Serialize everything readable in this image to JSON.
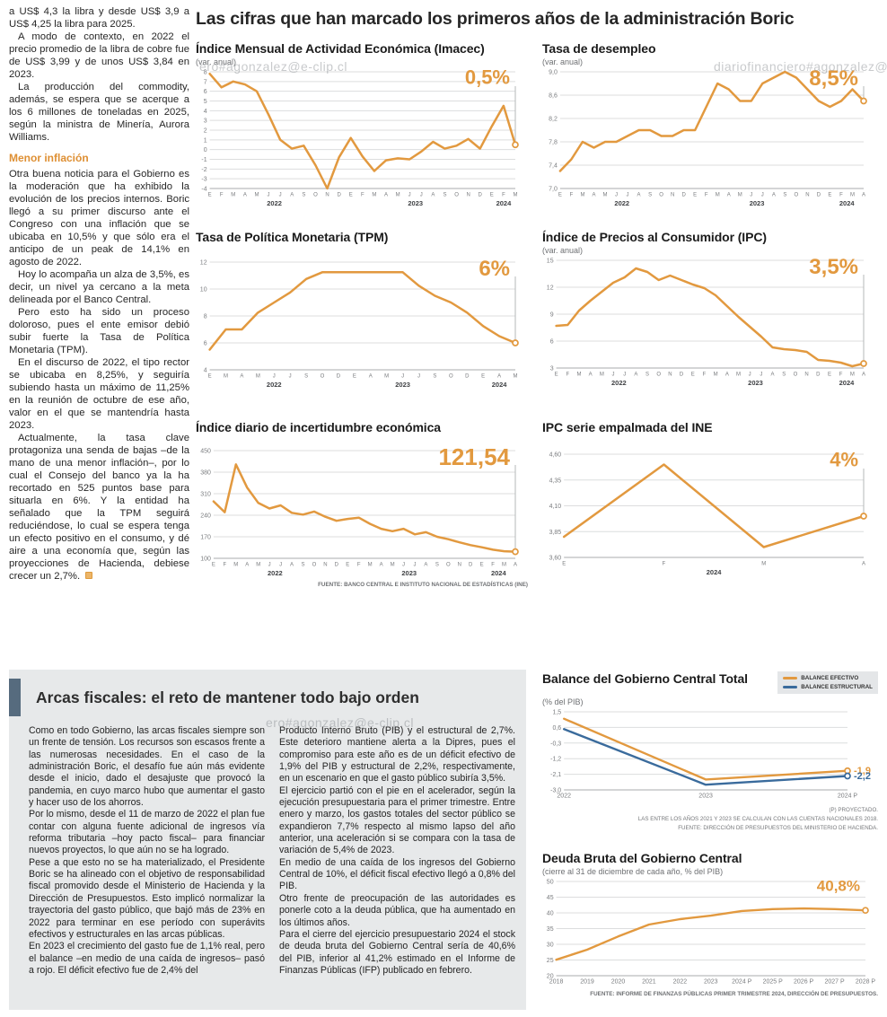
{
  "header": {
    "title": "Las cifras que han marcado los primeros años de la administración Boric"
  },
  "watermarks": {
    "w1": "ero#agonzalez@e-clip.cl",
    "w2": "diariofinanciero#agonzalez@e-clip.cl",
    "w3": "ero#agonzalez@e-clip.cl"
  },
  "article": {
    "intro_paragraphs": [
      "a US$ 4,3 la libra y desde US$ 3,9 a US$ 4,25 la libra para 2025.",
      "A modo de contexto, en 2022 el precio promedio de la libra de cobre fue de US$ 3,99 y de unos US$ 3,84 en 2023.",
      "La producción del commodity, además, se espera que se acerque a los 6 millones de toneladas en 2025, según la ministra de Minería, Aurora Williams."
    ],
    "subhead": "Menor inflación",
    "body_paragraphs": [
      "Otra buena noticia para el Gobierno es la moderación que ha exhibido la evolución de los precios internos. Boric llegó a su primer discurso ante el Congreso con una inflación que se ubicaba en 10,5% y que sólo era el anticipo de un peak de 14,1% en agosto de 2022.",
      "Hoy lo acompaña un alza de 3,5%, es decir, un nivel ya cercano a la meta delineada por el Banco Central.",
      "Pero esto ha sido un proceso doloroso, pues el ente emisor debió subir fuerte la Tasa de Política Monetaria (TPM).",
      "En el discurso de 2022, el tipo rector se ubicaba en 8,25%, y seguiría subiendo hasta un máximo de 11,25% en la reunión de octubre de ese año, valor en el que se mantendría hasta 2023."
    ],
    "last_paragraph": "Actualmente, la tasa clave protagoniza una senda de bajas –de la mano de una menor inflación–, por lo cual el Consejo del banco ya la ha recortado en 525 puntos base para situarla en 6%. Y la entidad ha señalado que la TPM seguirá reduciéndose, lo cual se espera tenga un efecto positivo en el consumo, y dé aire a una economía que, según las proyecciones de Hacienda, debiese crecer un 2,7%."
  },
  "fiscal": {
    "title": "Arcas fiscales: el reto de mantener todo bajo orden",
    "col1": [
      "Como en todo Gobierno, las arcas fiscales siempre son un frente de tensión. Los recursos son escasos frente a las numerosas necesidades. En el caso de la administración Boric, el desafío fue aún más evidente desde el inicio, dado el desajuste que provocó la pandemia, en cuyo marco hubo que aumentar el gasto y hacer uso de los ahorros.",
      "Por lo mismo, desde el 11 de marzo de 2022 el plan fue contar con alguna fuente adicional de ingresos vía reforma tributaria –hoy pacto fiscal– para financiar nuevos proyectos, lo que aún no se ha logrado.",
      "Pese a que esto no se ha materializado, el Presidente Boric se ha alineado con el objetivo de responsabilidad fiscal promovido desde el Ministerio de Hacienda y la Dirección de Presupuestos. Esto implicó normalizar la trayectoria del gasto público, que bajó más de 23% en 2022 para terminar en ese período con superávits efectivos y estructurales en las arcas públicas.",
      "En 2023 el crecimiento del gasto fue de 1,1% real, pero el balance –en medio de una caída de ingresos– pasó a rojo. El déficit efectivo fue de 2,4% del"
    ],
    "col2": [
      "Producto Interno Bruto (PIB) y el estructural de 2,7%. Este deterioro mantiene alerta a la Dipres, pues el compromiso para este año es de un déficit efectivo de 1,9% del PIB y estructural de 2,2%, respectivamente, en un escenario en que el gasto público subiría 3,5%.",
      "El ejercicio partió con el pie en el acelerador, según la ejecución presupuestaria para el primer trimestre. Entre enero y marzo, los gastos totales del sector público se expandieron 7,7% respecto al mismo lapso del año anterior, una aceleración si se compara con la tasa de variación de 5,4% de 2023.",
      "En medio de una caída de los ingresos del Gobierno Central de 10%, el déficit fiscal efectivo llegó a 0,8% del PIB.",
      "Otro frente de preocupación de las autoridades es ponerle coto a la deuda pública, que ha aumentado en los últimos años.",
      "Para el cierre del ejercicio presupuestario 2024 el stock de deuda bruta del Gobierno Central sería de 40,6% del PIB, inferior al 41,2% estimado en el Informe de Finanzas Públicas (IFP) publicado en febrero."
    ]
  },
  "colors": {
    "accent_orange": "#E2993F",
    "line_blue": "#3A6B9C",
    "panel_gray": "#e7e9ea",
    "header_bar_slate": "#566b7e"
  },
  "chart_data": [
    {
      "id": "imacec",
      "type": "line",
      "title": "Índice Mensual de Actividad Económica (Imacec)",
      "subtitle": "(var. anual)",
      "big_label": "0,5%",
      "big_size": 22,
      "y_min": -4,
      "y_max": 8,
      "y_ticks": [
        [
          8,
          "8"
        ],
        [
          7,
          "7"
        ],
        [
          6,
          "6"
        ],
        [
          5,
          "5"
        ],
        [
          4,
          "4"
        ],
        [
          3,
          "3"
        ],
        [
          2,
          "2"
        ],
        [
          1,
          "1"
        ],
        [
          0,
          "0"
        ],
        [
          -1,
          "-1"
        ],
        [
          -2,
          "-2"
        ],
        [
          -3,
          "-3"
        ],
        [
          -4,
          "-4"
        ]
      ],
      "x_labels": [
        "E",
        "F",
        "M",
        "A",
        "M",
        "J",
        "J",
        "A",
        "S",
        "O",
        "N",
        "D",
        "E",
        "F",
        "M",
        "A",
        "M",
        "J",
        "J",
        "A",
        "S",
        "O",
        "N",
        "D",
        "E",
        "F",
        "M"
      ],
      "x_years": [
        {
          "label": "2022",
          "at": 5.5
        },
        {
          "label": "2023",
          "at": 17.5
        },
        {
          "label": "2024",
          "at": 25
        }
      ],
      "end_line": true,
      "series": [
        {
          "color": "#E2993F",
          "values": [
            7.8,
            6.4,
            7.0,
            6.7,
            6.0,
            3.6,
            1.0,
            0.1,
            0.4,
            -1.6,
            -4.0,
            -0.8,
            1.2,
            -0.7,
            -2.2,
            -1.1,
            -0.9,
            -1.0,
            -0.2,
            0.8,
            0.1,
            0.4,
            1.1,
            0.1,
            2.4,
            4.5,
            0.5
          ]
        }
      ]
    },
    {
      "id": "desempleo",
      "type": "line",
      "title": "Tasa de desempleo",
      "subtitle": "(var. anual)",
      "big_label": "8,5%",
      "big_size": 24,
      "y_min": 7.0,
      "y_max": 9.0,
      "y_ticks": [
        [
          9.0,
          "9,0"
        ],
        [
          8.6,
          "8,6"
        ],
        [
          8.2,
          "8,2"
        ],
        [
          7.8,
          "7,8"
        ],
        [
          7.4,
          "7,4"
        ],
        [
          7.0,
          "7,0"
        ]
      ],
      "x_labels": [
        "E",
        "F",
        "M",
        "A",
        "M",
        "J",
        "J",
        "A",
        "S",
        "O",
        "N",
        "D",
        "E",
        "F",
        "M",
        "A",
        "M",
        "J",
        "J",
        "A",
        "S",
        "O",
        "N",
        "D",
        "E",
        "F",
        "M",
        "A"
      ],
      "x_years": [
        {
          "label": "2022",
          "at": 5.5
        },
        {
          "label": "2023",
          "at": 17.5
        },
        {
          "label": "2024",
          "at": 25.5
        }
      ],
      "end_line": true,
      "series": [
        {
          "color": "#E2993F",
          "values": [
            7.3,
            7.5,
            7.8,
            7.7,
            7.8,
            7.8,
            7.9,
            8.0,
            8.0,
            7.9,
            7.9,
            8.0,
            8.0,
            8.4,
            8.8,
            8.7,
            8.5,
            8.5,
            8.8,
            8.9,
            9.0,
            8.9,
            8.7,
            8.5,
            8.4,
            8.5,
            8.7,
            8.5
          ]
        }
      ]
    },
    {
      "id": "tpm",
      "type": "line",
      "title": "Tasa de Política Monetaria (TPM)",
      "subtitle": "",
      "big_label": "6%",
      "big_size": 24,
      "y_min": 4,
      "y_max": 12,
      "y_ticks": [
        [
          12,
          "12"
        ],
        [
          10,
          "10"
        ],
        [
          8,
          "8"
        ],
        [
          6,
          "6"
        ],
        [
          4,
          "4"
        ]
      ],
      "x_labels": [
        "E",
        "M",
        "A",
        "M",
        "J",
        "J",
        "S",
        "O",
        "D",
        "E",
        "A",
        "M",
        "J",
        "J",
        "S",
        "O",
        "D",
        "E",
        "A",
        "M"
      ],
      "x_years": [
        {
          "label": "2022",
          "at": 4
        },
        {
          "label": "2023",
          "at": 12
        },
        {
          "label": "2024",
          "at": 18
        }
      ],
      "end_line": true,
      "series": [
        {
          "color": "#E2993F",
          "values": [
            5.5,
            7.0,
            7.0,
            8.25,
            9.0,
            9.75,
            10.75,
            11.25,
            11.25,
            11.25,
            11.25,
            11.25,
            11.25,
            10.25,
            9.5,
            9.0,
            8.25,
            7.25,
            6.5,
            6.0
          ]
        }
      ]
    },
    {
      "id": "ipc",
      "type": "line",
      "title": "Índice de Precios al Consumidor (IPC)",
      "subtitle": "(var. anual)",
      "big_label": "3,5%",
      "big_size": 24,
      "y_min": 3,
      "y_max": 15,
      "y_ticks": [
        [
          15,
          "15"
        ],
        [
          12,
          "12"
        ],
        [
          9,
          "9"
        ],
        [
          6,
          "6"
        ],
        [
          3,
          "3"
        ]
      ],
      "x_labels": [
        "E",
        "F",
        "M",
        "A",
        "M",
        "J",
        "J",
        "A",
        "S",
        "O",
        "N",
        "D",
        "E",
        "F",
        "M",
        "A",
        "M",
        "J",
        "J",
        "A",
        "S",
        "O",
        "N",
        "D",
        "E",
        "F",
        "M",
        "A"
      ],
      "x_years": [
        {
          "label": "2022",
          "at": 5.5
        },
        {
          "label": "2023",
          "at": 17.5
        },
        {
          "label": "2024",
          "at": 25.5
        }
      ],
      "end_line": true,
      "series": [
        {
          "color": "#E2993F",
          "values": [
            7.7,
            7.8,
            9.4,
            10.5,
            11.5,
            12.5,
            13.1,
            14.1,
            13.7,
            12.8,
            13.3,
            12.8,
            12.3,
            11.9,
            11.1,
            9.9,
            8.7,
            7.6,
            6.5,
            5.3,
            5.1,
            5.0,
            4.8,
            3.9,
            3.8,
            3.6,
            3.2,
            3.5
          ]
        }
      ]
    },
    {
      "id": "incertidumbre",
      "type": "line",
      "title": "Índice diario de incertidumbre económica",
      "subtitle": "",
      "big_label": "121,54",
      "big_size": 26,
      "y_min": 100,
      "y_max": 450,
      "y_ticks": [
        [
          450,
          "450"
        ],
        [
          380,
          "380"
        ],
        [
          310,
          "310"
        ],
        [
          240,
          "240"
        ],
        [
          170,
          "170"
        ],
        [
          100,
          "100"
        ]
      ],
      "x_labels": [
        "E",
        "F",
        "M",
        "A",
        "M",
        "J",
        "J",
        "A",
        "S",
        "O",
        "N",
        "D",
        "E",
        "F",
        "M",
        "A",
        "M",
        "J",
        "J",
        "A",
        "S",
        "O",
        "N",
        "D",
        "E",
        "F",
        "M",
        "A"
      ],
      "x_years": [
        {
          "label": "2022",
          "at": 5.5
        },
        {
          "label": "2023",
          "at": 17.5
        },
        {
          "label": "2024",
          "at": 25.5
        }
      ],
      "end_line": true,
      "source": "FUENTE: BANCO CENTRAL E INSTITUTO NACIONAL DE ESTADÍSTICAS (INE)",
      "series": [
        {
          "color": "#E2993F",
          "values": [
            285,
            250,
            405,
            330,
            280,
            262,
            272,
            248,
            242,
            252,
            235,
            222,
            228,
            232,
            212,
            196,
            188,
            196,
            178,
            185,
            170,
            162,
            152,
            143,
            136,
            128,
            123,
            121.54
          ]
        }
      ]
    },
    {
      "id": "empalmada",
      "type": "line",
      "title": "IPC serie empalmada del INE",
      "subtitle": "",
      "big_label": "4%",
      "big_size": 22,
      "y_min": 3.6,
      "y_max": 4.6,
      "y_ticks": [
        [
          4.6,
          "4,60"
        ],
        [
          4.35,
          "4,35"
        ],
        [
          4.1,
          "4,10"
        ],
        [
          3.85,
          "3,85"
        ],
        [
          3.6,
          "3,60"
        ]
      ],
      "x_labels": [
        "E",
        "F",
        "M",
        "A"
      ],
      "x_years": [
        {
          "label": "2024",
          "at": 1.5
        }
      ],
      "end_line": true,
      "series": [
        {
          "color": "#E2993F",
          "values": [
            3.8,
            4.5,
            3.7,
            4.0
          ]
        }
      ]
    },
    {
      "id": "balance",
      "type": "line",
      "title": "Balance del Gobierno Central Total",
      "subtitle": "(% del PIB)",
      "y_min": -3.0,
      "y_max": 1.5,
      "y_ticks": [
        [
          1.5,
          "1,5"
        ],
        [
          0.6,
          "0,6"
        ],
        [
          -0.3,
          "-0,3"
        ],
        [
          -1.2,
          "-1,2"
        ],
        [
          -2.1,
          "-2,1"
        ],
        [
          -3.0,
          "-3,0"
        ]
      ],
      "x_labels": [
        "2022",
        "2023",
        "2024 P"
      ],
      "bigx": true,
      "right_pad": 34,
      "stroke": 2.4,
      "notes": [
        "(P) PROYECTADO.",
        "LAS ENTRE LOS AÑOS 2021 Y 2023 SE CALCULAN CON LAS CUENTAS NACIONALES 2018.",
        "FUENTE: DIRECCIÓN DE PRESUPUESTOS DEL MINISTERIO DE HACIENDA."
      ],
      "series": [
        {
          "name": "BALANCE EFECTIVO",
          "color": "#E2993F",
          "end_label": "-1,9",
          "values": [
            1.1,
            -2.4,
            -1.9
          ]
        },
        {
          "name": "BALANCE ESTRUCTURAL",
          "color": "#3A6B9C",
          "end_label": "-2,2",
          "values": [
            0.5,
            -2.7,
            -2.2
          ]
        }
      ]
    },
    {
      "id": "deuda",
      "type": "line",
      "title": "Deuda Bruta del Gobierno Central",
      "subtitle": "(cierre al 31 de diciembre de cada año, % del PIB)",
      "big_label": "40,8%",
      "big_size": 17,
      "y_min": 20,
      "y_max": 50,
      "y_ticks": [
        [
          50,
          "50"
        ],
        [
          45,
          "45"
        ],
        [
          40,
          "40"
        ],
        [
          35,
          "35"
        ],
        [
          30,
          "30"
        ],
        [
          25,
          "25"
        ],
        [
          20,
          "20"
        ]
      ],
      "x_labels": [
        "2018",
        "2019",
        "2020",
        "2021",
        "2022",
        "2023",
        "2024 P",
        "2025 P",
        "2026 P",
        "2027 P",
        "2028 P"
      ],
      "bigx": true,
      "stroke": 2.4,
      "source": "FUENTE: INFORME DE FINANZAS PÚBLICAS PRIMER TRIMESTRE 2024, DIRECCIÓN DE PRESUPUESTOS.",
      "series": [
        {
          "color": "#E2993F",
          "values": [
            25.1,
            28.3,
            32.5,
            36.3,
            38.0,
            39.1,
            40.6,
            41.2,
            41.4,
            41.2,
            40.8
          ]
        }
      ]
    }
  ]
}
